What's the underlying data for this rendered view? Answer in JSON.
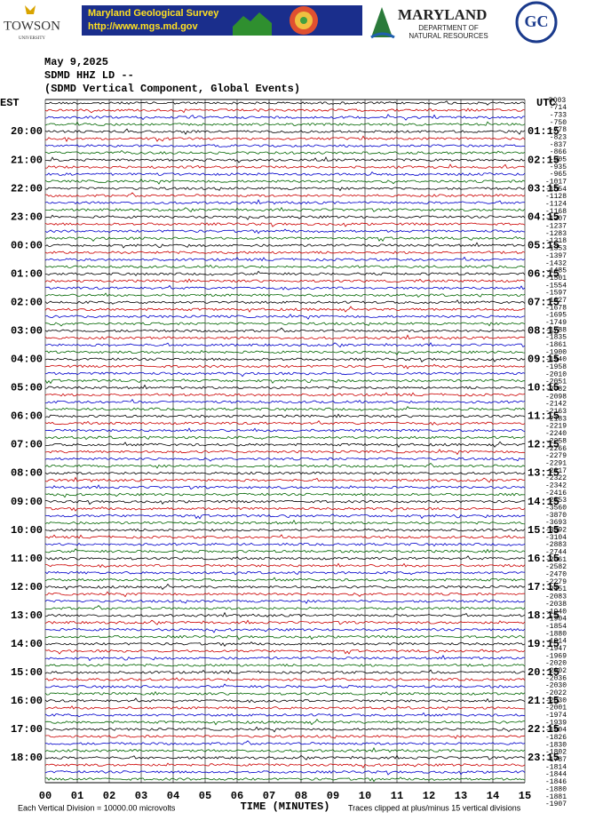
{
  "header": {
    "towson": "TOWSON",
    "towson_sub": "UNIVERSITY",
    "mgs_title": "Maryland Geological Survey",
    "mgs_url": "http://www.mgs.md.gov",
    "dnr_title": "MARYLAND",
    "dnr_sub1": "DEPARTMENT OF",
    "dnr_sub2": "NATURAL RESOURCES",
    "gc": "GC"
  },
  "plot": {
    "date": "May 9,2025",
    "station": "SDMD HHZ LD --",
    "description": "(SDMD Vertical Component, Global Events)",
    "left_header": "EST",
    "right_header": "UTC",
    "left_labels": [
      "20:00",
      "21:00",
      "22:00",
      "23:00",
      "00:00",
      "01:00",
      "02:00",
      "03:00",
      "04:00",
      "05:00",
      "06:00",
      "07:00",
      "08:00",
      "09:00",
      "10:00",
      "11:00",
      "12:00",
      "13:00",
      "14:00",
      "15:00",
      "16:00",
      "17:00",
      "18:00"
    ],
    "right_labels": [
      "01:15",
      "02:15",
      "03:15",
      "04:15",
      "05:15",
      "06:15",
      "07:15",
      "08:15",
      "09:15",
      "10:15",
      "11:15",
      "12:15",
      "13:15",
      "14:15",
      "15:15",
      "16:15",
      "17:15",
      "18:15",
      "19:15",
      "20:15",
      "21:15",
      "22:15",
      "23:15"
    ],
    "offset_header": "DQ03",
    "offsets": [
      -714,
      -733,
      -750,
      -778,
      -823,
      -837,
      -866,
      -905,
      -935,
      -965,
      -1017,
      -1054,
      -1128,
      -1124,
      -1168,
      -1207,
      -1237,
      -1283,
      -1318,
      -1353,
      -1397,
      -1432,
      -1485,
      -1501,
      -1554,
      -1597,
      -1627,
      -1678,
      -1695,
      -1749,
      -1788,
      -1835,
      -1861,
      -1900,
      -1940,
      -1958,
      -2010,
      -2051,
      -2082,
      -2098,
      -2142,
      -2163,
      -2183,
      -2219,
      -2240,
      -2258,
      -2266,
      -2279,
      -2291,
      -2317,
      -2322,
      -2342,
      -2416,
      -2553,
      -3560,
      -3870,
      -3693,
      -3392,
      -3104,
      -2883,
      -2744,
      -2661,
      -2582,
      -2470,
      -2279,
      -2151,
      -2083,
      -2038,
      -1940,
      -1904,
      -1854,
      -1880,
      -1914,
      -1947,
      -1969,
      -2020,
      -2002,
      -2036,
      -2030,
      -2022,
      -2030,
      -2001,
      -1974,
      -1939,
      -1904,
      -1826,
      -1830,
      -1802,
      -1787,
      -1814,
      -1844,
      -1846,
      -1880,
      -1881,
      -1907
    ],
    "trace_colors": [
      "#000000",
      "#cc0000",
      "#0000cc",
      "#006600"
    ],
    "x_labels": [
      "00",
      "01",
      "02",
      "03",
      "04",
      "05",
      "06",
      "07",
      "08",
      "09",
      "10",
      "11",
      "12",
      "13",
      "14",
      "15"
    ],
    "x_title": "TIME (MINUTES)",
    "footer_left": "Each Vertical Division = 10000.00 microvolts",
    "footer_right": "Traces clipped at plus/minus 15 vertical divisions"
  }
}
